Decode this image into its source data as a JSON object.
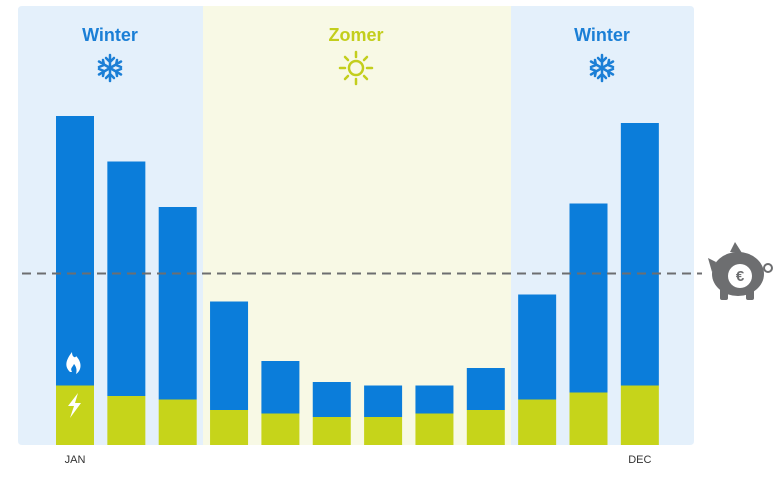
{
  "chart_data": {
    "type": "stacked-bar",
    "categories": [
      "JAN",
      null,
      null,
      null,
      null,
      null,
      null,
      null,
      null,
      null,
      null,
      "DEC"
    ],
    "series": [
      {
        "color": "#c6d41a",
        "values": [
          17,
          14,
          13,
          10,
          9,
          8,
          8,
          9,
          10,
          13,
          15,
          17
        ]
      },
      {
        "color": "#0b7dda",
        "values": [
          77,
          67,
          55,
          31,
          15,
          10,
          9,
          8,
          12,
          30,
          54,
          75
        ]
      }
    ],
    "ylim": [
      0,
      100
    ],
    "reference_line": {
      "value": 49,
      "color": "#6d6e70"
    },
    "seasons": [
      {
        "label": "Winter",
        "color": "#1b7fd6"
      },
      {
        "label": "Zomer",
        "color": "#c3ce1c"
      },
      {
        "label": "Winter",
        "color": "#1b7fd6"
      }
    ]
  }
}
